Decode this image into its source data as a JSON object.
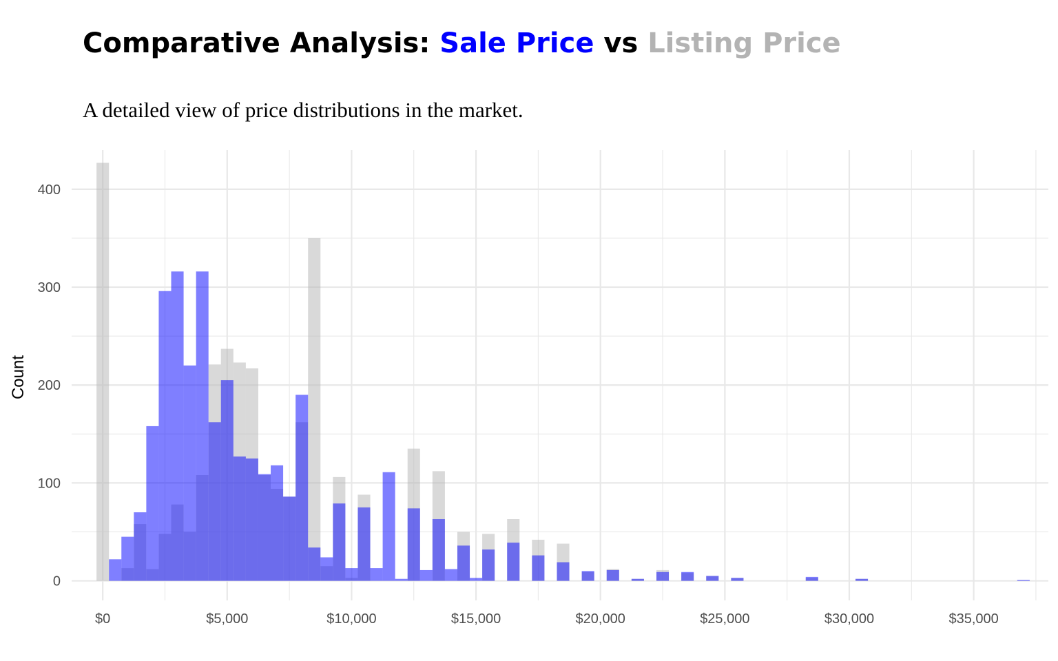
{
  "title": {
    "prefix": "Comparative Analysis: ",
    "series1": "Sale Price",
    "mid": " vs ",
    "series2": "Listing Price"
  },
  "subtitle": "A detailed view of price distributions in the market.",
  "colors": {
    "sale": "#0000ff",
    "listing": "#b3b3b3",
    "grid": "#e8e8e8"
  },
  "chart_data": {
    "type": "bar",
    "subtype": "overlaid-histogram",
    "title": "Comparative Analysis: Sale Price vs Listing Price",
    "subtitle": "A detailed view of price distributions in the market.",
    "xlabel": "",
    "ylabel": "Count",
    "bin_width": 500,
    "xlim": [
      -1250,
      38000
    ],
    "ylim": [
      -20,
      440
    ],
    "x_ticks": [
      0,
      5000,
      10000,
      15000,
      20000,
      25000,
      30000,
      35000
    ],
    "x_tick_labels": [
      "$0",
      "$5,000",
      "$10,000",
      "$15,000",
      "$20,000",
      "$25,000",
      "$30,000",
      "$35,000"
    ],
    "y_ticks": [
      0,
      100,
      200,
      300,
      400
    ],
    "y_tick_labels": [
      "0",
      "100",
      "200",
      "300",
      "400"
    ],
    "grid": true,
    "legend": "none",
    "bin_starts": [
      -250,
      250,
      750,
      1250,
      1750,
      2250,
      2750,
      3250,
      3750,
      4250,
      4750,
      5250,
      5750,
      6250,
      6750,
      7250,
      7750,
      8250,
      8750,
      9250,
      9750,
      10250,
      10750,
      11250,
      11750,
      12250,
      12750,
      13250,
      13750,
      14250,
      14750,
      15250,
      15750,
      16250,
      16750,
      17250,
      17750,
      18250,
      18750,
      19250,
      19750,
      20250,
      20750,
      21250,
      21750,
      22250,
      22750,
      23250,
      23750,
      24250,
      24750,
      25250,
      25750,
      26250,
      26750,
      27250,
      27750,
      28250,
      28750,
      29250,
      29750,
      30250,
      30750,
      31250,
      31750,
      32250,
      32750,
      33250,
      33750,
      34250,
      34750,
      35250,
      35750,
      36250,
      36750
    ],
    "series": [
      {
        "name": "Listing Price",
        "values": [
          427,
          0,
          13,
          58,
          12,
          48,
          78,
          50,
          108,
          221,
          237,
          223,
          217,
          108,
          94,
          86,
          162,
          350,
          15,
          106,
          3,
          88,
          0,
          0,
          0,
          135,
          0,
          112,
          0,
          50,
          0,
          48,
          0,
          63,
          0,
          42,
          0,
          38,
          0,
          9,
          0,
          12,
          0,
          2,
          0,
          11,
          0,
          8,
          0,
          5,
          0,
          3,
          0,
          0,
          0,
          0,
          0,
          3,
          0,
          0,
          0,
          2,
          0,
          0,
          0,
          0,
          0,
          0,
          0,
          0,
          0,
          0,
          0,
          0,
          0
        ]
      },
      {
        "name": "Sale Price",
        "values": [
          0,
          22,
          45,
          70,
          158,
          296,
          316,
          220,
          316,
          162,
          205,
          127,
          125,
          109,
          118,
          86,
          190,
          34,
          24,
          79,
          13,
          75,
          13,
          111,
          2,
          74,
          11,
          63,
          12,
          36,
          3,
          32,
          0,
          39,
          0,
          26,
          0,
          19,
          0,
          10,
          0,
          11,
          0,
          2,
          0,
          9,
          0,
          9,
          0,
          5,
          0,
          3,
          0,
          0,
          0,
          0,
          0,
          4,
          0,
          0,
          0,
          2,
          0,
          0,
          0,
          0,
          0,
          0,
          0,
          0,
          0,
          0,
          0,
          0,
          1
        ]
      }
    ]
  }
}
